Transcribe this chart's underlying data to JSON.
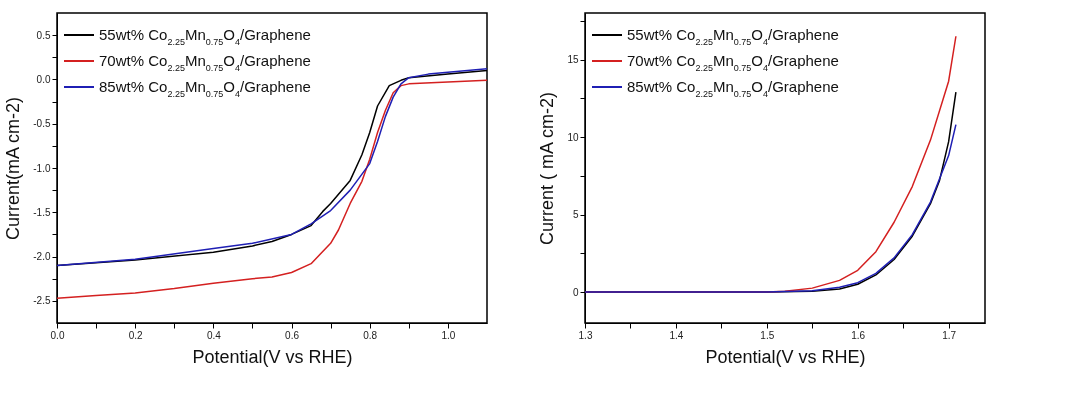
{
  "chart_data": [
    {
      "type": "line",
      "xlabel": "Potential(V vs RHE)",
      "ylabel": "Current(mA cm-2)",
      "legend": "top left",
      "grid": false,
      "xlim": [
        0,
        1.1
      ],
      "ylim": [
        -2.75,
        0.75
      ],
      "xticks": [
        {
          "value": 0,
          "label": "0.0"
        },
        {
          "value": 0.1,
          "label": null
        },
        {
          "value": 0.2,
          "label": "0.2"
        },
        {
          "value": 0.3,
          "label": null
        },
        {
          "value": 0.4,
          "label": "0.4"
        },
        {
          "value": 0.5,
          "label": null
        },
        {
          "value": 0.6,
          "label": "0.6"
        },
        {
          "value": 0.7,
          "label": null
        },
        {
          "value": 0.8,
          "label": "0.8"
        },
        {
          "value": 0.9,
          "label": null
        },
        {
          "value": 1,
          "label": "1.0"
        }
      ],
      "yticks": [
        {
          "value": -2.5,
          "label": "-2.5"
        },
        {
          "value": -2.25,
          "label": null
        },
        {
          "value": -2,
          "label": "-2.0"
        },
        {
          "value": -1.75,
          "label": null
        },
        {
          "value": -1.5,
          "label": "-1.5"
        },
        {
          "value": -1.25,
          "label": null
        },
        {
          "value": -1,
          "label": "-1.0"
        },
        {
          "value": -0.75,
          "label": null
        },
        {
          "value": -0.5,
          "label": "-0.5"
        },
        {
          "value": -0.25,
          "label": null
        },
        {
          "value": 0,
          "label": "0.0"
        },
        {
          "value": 0.25,
          "label": null
        },
        {
          "value": 0.5,
          "label": "0.5"
        }
      ],
      "series": [
        {
          "name": "55wt% Co$_{2.25}$Mn$_{0.75}$O$_{4}$/Graphene",
          "color": "#000000",
          "x": [
            0,
            0.2,
            0.4,
            0.5,
            0.55,
            0.6,
            0.65,
            0.68,
            0.7,
            0.75,
            0.78,
            0.8,
            0.82,
            0.85,
            0.88,
            0.9,
            1.0,
            1.1
          ],
          "values": [
            -2.1,
            -2.04,
            -1.95,
            -1.88,
            -1.83,
            -1.75,
            -1.65,
            -1.49,
            -1.4,
            -1.14,
            -0.85,
            -0.6,
            -0.3,
            -0.07,
            -0.01,
            0.02,
            0.06,
            0.1
          ]
        },
        {
          "name": "70wt% Co$_{2.25}$Mn$_{0.75}$O$_{4}$/Graphene",
          "color": "#d42020",
          "x": [
            0,
            0.1,
            0.2,
            0.3,
            0.4,
            0.5,
            0.55,
            0.6,
            0.65,
            0.7,
            0.72,
            0.75,
            0.78,
            0.8,
            0.82,
            0.84,
            0.86,
            0.88,
            0.9,
            1.0,
            1.1
          ],
          "values": [
            -2.47,
            -2.44,
            -2.41,
            -2.36,
            -2.3,
            -2.25,
            -2.23,
            -2.18,
            -2.08,
            -1.85,
            -1.7,
            -1.4,
            -1.15,
            -0.9,
            -0.6,
            -0.35,
            -0.15,
            -0.07,
            -0.05,
            -0.03,
            -0.01
          ]
        },
        {
          "name": "85wt% Co$_{2.25}$Mn$_{0.75}$O$_{4}$/Graphene",
          "color": "#1f1fb4",
          "x": [
            0,
            0.2,
            0.4,
            0.5,
            0.6,
            0.65,
            0.7,
            0.75,
            0.8,
            0.82,
            0.84,
            0.86,
            0.88,
            0.9,
            0.95,
            1.0,
            1.1
          ],
          "values": [
            -2.1,
            -2.03,
            -1.91,
            -1.85,
            -1.75,
            -1.63,
            -1.48,
            -1.25,
            -0.95,
            -0.7,
            -0.42,
            -0.2,
            -0.05,
            0.02,
            0.06,
            0.08,
            0.12
          ]
        }
      ]
    },
    {
      "type": "line",
      "xlabel": "Potential(V vs RHE)",
      "ylabel": "Current ( mA cm-2)",
      "legend": "top left",
      "grid": false,
      "xlim": [
        1.3,
        1.74
      ],
      "ylim": [
        -2,
        18
      ],
      "xticks": [
        1.3,
        {
          "value": 1.35,
          "label": null
        },
        1.4,
        {
          "value": 1.45,
          "label": null
        },
        1.5,
        {
          "value": 1.55,
          "label": null
        },
        1.6,
        {
          "value": 1.65,
          "label": null
        },
        1.7
      ],
      "yticks": [
        0,
        {
          "value": 2.5,
          "label": null
        },
        5,
        {
          "value": 7.5,
          "label": null
        },
        10,
        {
          "value": 12.5,
          "label": null
        },
        15,
        {
          "value": 17.5,
          "label": null
        }
      ],
      "series": [
        {
          "name": "55wt% Co$_{2.25}$Mn$_{0.75}$O$_{4}$/Graphene",
          "color": "#000000",
          "x": [
            1.3,
            1.5,
            1.55,
            1.58,
            1.6,
            1.62,
            1.64,
            1.66,
            1.68,
            1.69,
            1.7,
            1.708
          ],
          "values": [
            0,
            0,
            0.05,
            0.2,
            0.5,
            1.1,
            2.1,
            3.6,
            5.7,
            7.2,
            9.7,
            12.9
          ]
        },
        {
          "name": "70wt% Co$_{2.25}$Mn$_{0.75}$O$_{4}$/Graphene",
          "color": "#d42020",
          "x": [
            1.3,
            1.5,
            1.52,
            1.55,
            1.58,
            1.6,
            1.62,
            1.64,
            1.66,
            1.68,
            1.7,
            1.708
          ],
          "values": [
            0,
            0,
            0.05,
            0.25,
            0.75,
            1.4,
            2.6,
            4.5,
            6.8,
            9.8,
            13.6,
            16.5
          ]
        },
        {
          "name": "85wt% Co$_{2.25}$Mn$_{0.75}$O$_{4}$/Graphene",
          "color": "#1f1fb4",
          "x": [
            1.3,
            1.5,
            1.55,
            1.58,
            1.6,
            1.62,
            1.64,
            1.66,
            1.68,
            1.7,
            1.708
          ],
          "values": [
            0,
            0,
            0.08,
            0.3,
            0.6,
            1.2,
            2.2,
            3.7,
            5.8,
            8.8,
            10.8
          ]
        }
      ]
    }
  ]
}
